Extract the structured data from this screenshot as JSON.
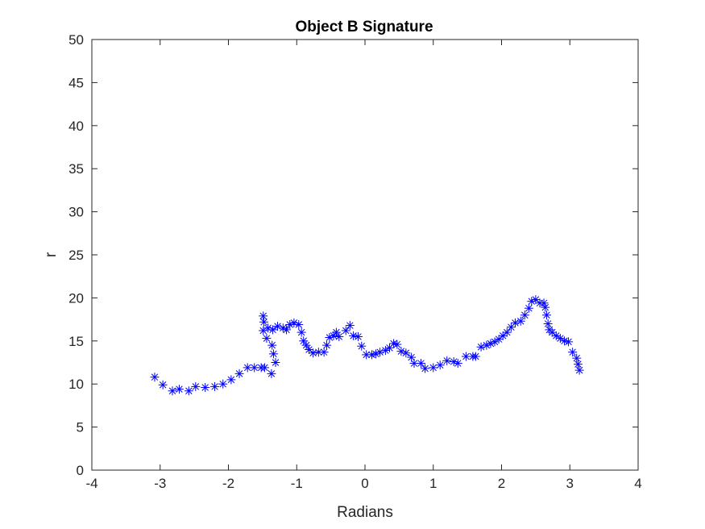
{
  "chart_data": {
    "type": "scatter",
    "title": "Object B Signature",
    "xlabel": "Radians",
    "ylabel": "r",
    "xlim": [
      -4,
      4
    ],
    "ylim": [
      0,
      50
    ],
    "xticks": [
      -4,
      -3,
      -2,
      -1,
      0,
      1,
      2,
      3,
      4
    ],
    "yticks": [
      0,
      5,
      10,
      15,
      20,
      25,
      30,
      35,
      40,
      45,
      50
    ],
    "xtick_labels": [
      "-4",
      "-3",
      "-2",
      "-1",
      "0",
      "1",
      "2",
      "3",
      "4"
    ],
    "ytick_labels": [
      "0",
      "5",
      "10",
      "15",
      "20",
      "25",
      "30",
      "35",
      "40",
      "45",
      "50"
    ],
    "grid": false,
    "marker": "*",
    "color": "#0000ff",
    "points": [
      [
        -3.08,
        10.8
      ],
      [
        -2.96,
        9.9
      ],
      [
        -2.82,
        9.2
      ],
      [
        -2.72,
        9.4
      ],
      [
        -2.58,
        9.2
      ],
      [
        -2.48,
        9.7
      ],
      [
        -2.34,
        9.6
      ],
      [
        -2.2,
        9.7
      ],
      [
        -2.08,
        10.0
      ],
      [
        -1.96,
        10.5
      ],
      [
        -1.84,
        11.2
      ],
      [
        -1.72,
        11.9
      ],
      [
        -1.62,
        11.9
      ],
      [
        -1.52,
        11.9
      ],
      [
        -1.47,
        11.9
      ],
      [
        -1.49,
        17.9
      ],
      [
        -1.48,
        17.2
      ],
      [
        -1.49,
        16.2
      ],
      [
        -1.44,
        15.3
      ],
      [
        -1.37,
        11.2
      ],
      [
        -1.42,
        16.5
      ],
      [
        -1.36,
        14.5
      ],
      [
        -1.34,
        13.5
      ],
      [
        -1.31,
        12.5
      ],
      [
        -1.35,
        16.3
      ],
      [
        -1.28,
        16.7
      ],
      [
        -1.2,
        16.5
      ],
      [
        -1.15,
        16.3
      ],
      [
        -1.1,
        16.9
      ],
      [
        -1.04,
        17.1
      ],
      [
        -0.97,
        16.9
      ],
      [
        -0.93,
        16.0
      ],
      [
        -0.9,
        15.0
      ],
      [
        -0.86,
        14.5
      ],
      [
        -0.82,
        14.0
      ],
      [
        -0.76,
        13.6
      ],
      [
        -0.68,
        13.7
      ],
      [
        -0.6,
        13.7
      ],
      [
        -0.56,
        14.5
      ],
      [
        -0.52,
        15.4
      ],
      [
        -0.46,
        15.6
      ],
      [
        -0.42,
        16.0
      ],
      [
        -0.38,
        15.5
      ],
      [
        -0.28,
        16.2
      ],
      [
        -0.22,
        16.8
      ],
      [
        -0.17,
        15.6
      ],
      [
        -0.1,
        15.5
      ],
      [
        -0.05,
        14.4
      ],
      [
        0.02,
        13.4
      ],
      [
        0.1,
        13.4
      ],
      [
        0.16,
        13.5
      ],
      [
        0.22,
        13.7
      ],
      [
        0.3,
        13.9
      ],
      [
        0.36,
        14.2
      ],
      [
        0.42,
        14.7
      ],
      [
        0.47,
        14.6
      ],
      [
        0.53,
        13.8
      ],
      [
        0.6,
        13.6
      ],
      [
        0.68,
        13.1
      ],
      [
        0.72,
        12.4
      ],
      [
        0.82,
        12.4
      ],
      [
        0.88,
        11.8
      ],
      [
        1.0,
        11.9
      ],
      [
        1.1,
        12.2
      ],
      [
        1.2,
        12.7
      ],
      [
        1.3,
        12.6
      ],
      [
        1.36,
        12.4
      ],
      [
        1.48,
        13.2
      ],
      [
        1.58,
        13.2
      ],
      [
        1.62,
        13.2
      ],
      [
        1.7,
        14.3
      ],
      [
        1.78,
        14.5
      ],
      [
        1.84,
        14.7
      ],
      [
        1.9,
        14.9
      ],
      [
        1.96,
        15.2
      ],
      [
        2.02,
        15.6
      ],
      [
        2.08,
        16.0
      ],
      [
        2.14,
        16.6
      ],
      [
        2.2,
        17.1
      ],
      [
        2.28,
        17.3
      ],
      [
        2.34,
        18.0
      ],
      [
        2.4,
        18.8
      ],
      [
        2.44,
        19.6
      ],
      [
        2.5,
        19.8
      ],
      [
        2.56,
        19.4
      ],
      [
        2.62,
        19.4
      ],
      [
        2.64,
        18.9
      ],
      [
        2.66,
        18.0
      ],
      [
        2.68,
        17.0
      ],
      [
        2.7,
        16.3
      ],
      [
        2.74,
        16.0
      ],
      [
        2.8,
        15.6
      ],
      [
        2.86,
        15.3
      ],
      [
        2.92,
        15.0
      ],
      [
        2.98,
        14.9
      ],
      [
        3.04,
        13.7
      ],
      [
        3.1,
        13.0
      ],
      [
        3.12,
        12.3
      ],
      [
        3.14,
        11.6
      ]
    ]
  }
}
